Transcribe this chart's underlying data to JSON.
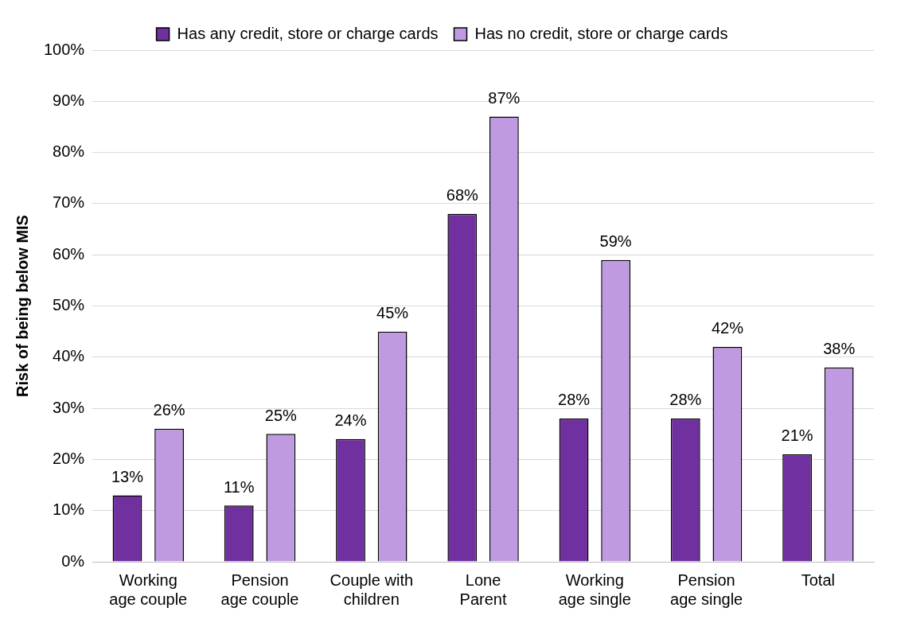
{
  "chart_data": {
    "type": "bar",
    "ylabel": "Risk of being below MIS",
    "categories": [
      "Working age couple",
      "Pension age couple",
      "Couple with children",
      "Lone Parent",
      "Working age single",
      "Pension age single",
      "Total"
    ],
    "series": [
      {
        "name": "Has any credit, store or charge cards",
        "color": "#7030a0",
        "values": [
          13,
          11,
          24,
          68,
          28,
          28,
          21
        ],
        "value_labels": [
          "13%",
          "11%",
          "24%",
          "68%",
          "28%",
          "28%",
          "21%"
        ]
      },
      {
        "name": "Has no credit, store or charge cards",
        "color": "#c09ae0",
        "values": [
          26,
          25,
          45,
          87,
          59,
          42,
          38
        ],
        "value_labels": [
          "26%",
          "25%",
          "45%",
          "87%",
          "59%",
          "42%",
          "38%"
        ]
      }
    ],
    "ylim": [
      0,
      100
    ],
    "yticks": [
      {
        "value": 0,
        "label": "0%"
      },
      {
        "value": 10,
        "label": "10%"
      },
      {
        "value": 20,
        "label": "20%"
      },
      {
        "value": 30,
        "label": "30%"
      },
      {
        "value": 40,
        "label": "40%"
      },
      {
        "value": 50,
        "label": "50%"
      },
      {
        "value": 60,
        "label": "60%"
      },
      {
        "value": 70,
        "label": "70%"
      },
      {
        "value": 80,
        "label": "80%"
      },
      {
        "value": 90,
        "label": "90%"
      },
      {
        "value": 100,
        "label": "100%"
      }
    ],
    "grid": "y",
    "legend": "top"
  }
}
